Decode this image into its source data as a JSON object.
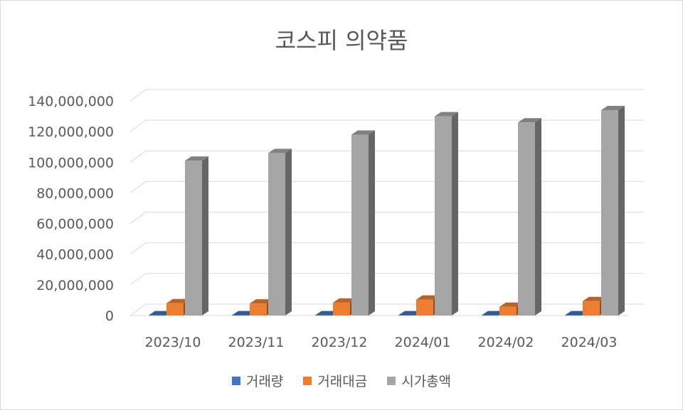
{
  "chart_data": {
    "type": "bar",
    "title": "코스피 의약품",
    "categories": [
      "2023/10",
      "2023/11",
      "2023/12",
      "2024/01",
      "2024/02",
      "2024/03"
    ],
    "series": [
      {
        "name": "거래량",
        "color": "#4472C4",
        "values": [
          150000,
          180000,
          160000,
          200000,
          150000,
          190000
        ]
      },
      {
        "name": "거래대금",
        "color": "#ED7D31",
        "values": [
          8000000,
          7800000,
          8400000,
          10400000,
          5700000,
          9400000
        ]
      },
      {
        "name": "시가총액",
        "color": "#A5A5A5",
        "values": [
          101000000,
          106000000,
          118000000,
          130000000,
          126000000,
          134000000
        ]
      }
    ],
    "ylim": [
      0,
      140000000
    ],
    "ytick_labels": [
      "0",
      "20,000,000",
      "40,000,000",
      "60,000,000",
      "80,000,000",
      "100,000,000",
      "120,000,000",
      "140,000,000"
    ],
    "grid": true,
    "legend_position": "bottom",
    "style": "3d-clustered-column"
  }
}
